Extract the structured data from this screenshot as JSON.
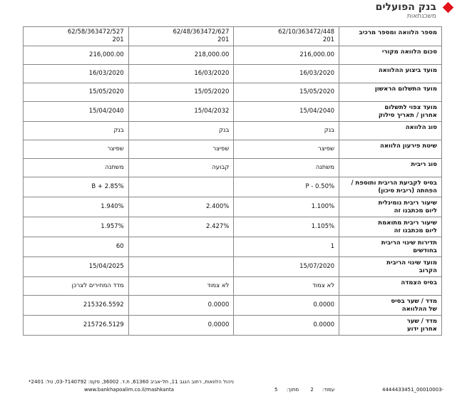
{
  "header": {
    "bank_name": "בנק הפועלים",
    "subtitle": "משכנתאות"
  },
  "table": {
    "rows": [
      [
        [
          "מספר הלוואה ומספר מרכיב"
        ],
        [
          "62/10/363472/448",
          "201"
        ],
        [
          "62/48/363472/627",
          "201"
        ],
        [
          "62/58/363472/527",
          "201"
        ]
      ],
      [
        [
          "סכום הלוואה מקורי"
        ],
        [
          "216,000.00"
        ],
        [
          "218,000.00"
        ],
        [
          "216,000.00"
        ]
      ],
      [
        [
          "מועד ביצוע ההלוואה"
        ],
        [
          "16/03/2020"
        ],
        [
          "16/03/2020"
        ],
        [
          "16/03/2020"
        ]
      ],
      [
        [
          "מועד התשלום הראשון"
        ],
        [
          "15/05/2020"
        ],
        [
          "15/05/2020"
        ],
        [
          "15/05/2020"
        ]
      ],
      [
        [
          "מועד צפוי לתשלום",
          "אחרון / תאריך סילוק"
        ],
        [
          "15/04/2040"
        ],
        [
          "15/04/2032"
        ],
        [
          "15/04/2040"
        ]
      ],
      [
        [
          "סוג הלוואה"
        ],
        [
          "בנק"
        ],
        [
          "בנק"
        ],
        [
          "בנק"
        ]
      ],
      [
        [
          "שיטת פירעון הלוואה"
        ],
        [
          "שפיצר"
        ],
        [
          "שפיצר"
        ],
        [
          "שפיצר"
        ]
      ],
      [
        [
          "סוג ריבית"
        ],
        [
          "משתנה"
        ],
        [
          "קבועה"
        ],
        [
          "משתנה"
        ]
      ],
      [
        [
          "בסיס לקביעת הריבית ותוספת /",
          "הפחתה (ריבית סיכון)"
        ],
        [
          "P - 0.50%"
        ],
        [],
        [
          "B + 2.85%"
        ]
      ],
      [
        [
          "שיעור ריבית נומינלית",
          "ליום מכתבנו זה"
        ],
        [
          "1.100%"
        ],
        [
          "2.400%"
        ],
        [
          "1.940%"
        ]
      ],
      [
        [
          "שיעור ריבית מתואמת",
          "ליום מכתבנו זה"
        ],
        [
          "1.105%"
        ],
        [
          "2.427%"
        ],
        [
          "1.957%"
        ]
      ],
      [
        [
          "תדירות שינוי הריבית",
          "בחודשים"
        ],
        [
          "1"
        ],
        [],
        [
          "60"
        ]
      ],
      [
        [
          "מועד שינוי הריבית",
          "הקרוב"
        ],
        [
          "15/07/2020"
        ],
        [],
        [
          "15/04/2025"
        ]
      ],
      [
        [
          "בסיס הצמדה"
        ],
        [
          "לא צמוד"
        ],
        [
          "לא צמוד"
        ],
        [
          "מדד המחירים לצרכן"
        ]
      ],
      [
        [
          "מדד / שער בסיס",
          "של ההלוואה"
        ],
        [
          "0.0000"
        ],
        [
          "0.0000"
        ],
        [
          "215326.5592"
        ]
      ],
      [
        [
          "מדד / שער",
          "אחרון ידוע"
        ],
        [
          "0.0000"
        ],
        [
          "0.0000"
        ],
        [
          "215726.5129"
        ]
      ]
    ]
  },
  "footer": {
    "address": "ניהול הלוואות, רחוב הנגב 11, תל-אביב 61360, ת.ד. 36002, פקס: 03-7140792, טל: 2401*",
    "website": "www.bankhapoalim.co.il/mashkanta",
    "page_label": "עמוד:",
    "page_number": "2",
    "of_label": "מתוך:",
    "page_total": "5",
    "document_id": "4444433451_00010003-"
  }
}
